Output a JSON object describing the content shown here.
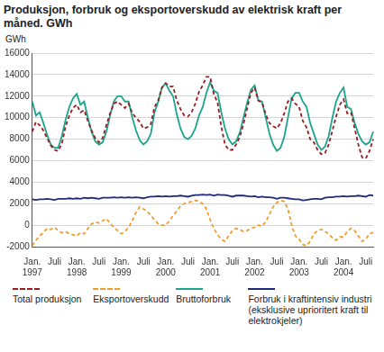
{
  "chart_data": {
    "type": "line",
    "title": "Produksjon, forbruk og eksportoverskudd av elektrisk kraft per måned. GWh",
    "ylabel": "GWh",
    "categories": [
      "Jan. 1997",
      null,
      null,
      null,
      null,
      null,
      "Juli",
      null,
      null,
      null,
      null,
      null,
      "Jan. 1998",
      null,
      null,
      null,
      null,
      null,
      "Juli",
      null,
      null,
      null,
      null,
      null,
      "Jan. 1999",
      null,
      null,
      null,
      null,
      null,
      "Juli",
      null,
      null,
      null,
      null,
      null,
      "Jan. 2000",
      null,
      null,
      null,
      null,
      null,
      "Juli",
      null,
      null,
      null,
      null,
      null,
      "Jan. 2001",
      null,
      null,
      null,
      null,
      null,
      "Juli",
      null,
      null,
      null,
      null,
      null,
      "Jan. 2002",
      null,
      null,
      null,
      null,
      null,
      "Juli",
      null,
      null,
      null,
      null,
      null,
      "Jan. 2003",
      null,
      null,
      null,
      null,
      null,
      "Juli",
      null,
      null,
      null,
      null,
      null,
      "Jan. 2004",
      null,
      null,
      null,
      null,
      null,
      "Juli",
      null,
      null
    ],
    "series": [
      {
        "name": "Total produksjon",
        "color": "#9b1b1e",
        "line_style": "dashed",
        "values": [
          8700,
          9600,
          9300,
          8800,
          8100,
          7400,
          7000,
          6900,
          7600,
          9200,
          10200,
          10900,
          11200,
          10500,
          10700,
          9700,
          8800,
          8100,
          7700,
          8100,
          9300,
          10400,
          11300,
          11500,
          11200,
          10900,
          11300,
          10400,
          10000,
          9600,
          9000,
          9100,
          9400,
          11000,
          11600,
          12800,
          13200,
          12900,
          12900,
          11600,
          10800,
          10200,
          10100,
          10500,
          11300,
          12400,
          13000,
          13800,
          13800,
          12200,
          11400,
          9200,
          7500,
          7000,
          7000,
          7500,
          8200,
          9400,
          10900,
          12300,
          12800,
          11600,
          11400,
          10300,
          9500,
          9200,
          9000,
          9500,
          10400,
          11500,
          11800,
          11300,
          11000,
          9700,
          9100,
          8000,
          7700,
          7000,
          6600,
          6700,
          7500,
          8800,
          10100,
          11200,
          11700,
          10400,
          10500,
          9000,
          7500,
          6300,
          6200,
          6900,
          8000
        ]
      },
      {
        "name": "Eksportoverskudd",
        "color": "#f39c2b",
        "line_style": "dashed",
        "values": [
          -1900,
          -1400,
          -1000,
          -700,
          -300,
          -400,
          -200,
          -500,
          -700,
          -600,
          -800,
          -900,
          -1000,
          -700,
          -800,
          -300,
          100,
          300,
          200,
          400,
          600,
          200,
          -200,
          -500,
          -800,
          -600,
          -200,
          400,
          1200,
          1700,
          1500,
          1300,
          900,
          500,
          100,
          0,
          0,
          400,
          900,
          1300,
          1800,
          2000,
          2100,
          2200,
          2300,
          2200,
          2000,
          1500,
          500,
          -300,
          -900,
          -1300,
          -1500,
          -1000,
          -500,
          -300,
          -400,
          -600,
          -500,
          -300,
          -200,
          0,
          -100,
          300,
          1000,
          1700,
          2100,
          2300,
          2200,
          1500,
          0,
          -1000,
          -1300,
          -1800,
          -1900,
          -1500,
          -800,
          -500,
          -400,
          -600,
          -800,
          -1200,
          -1400,
          -1100,
          -1100,
          -600,
          -300,
          -500,
          -1000,
          -1500,
          -1300,
          -800,
          -700
        ]
      },
      {
        "name": "Bruttoforbruk",
        "color": "#1aa58c",
        "line_style": "solid",
        "values": [
          11500,
          10200,
          10500,
          9500,
          8400,
          7500,
          7200,
          7200,
          8300,
          9800,
          11000,
          11800,
          12200,
          11200,
          11500,
          10000,
          8700,
          7800,
          7500,
          7700,
          8700,
          10200,
          11500,
          12000,
          12000,
          11500,
          11500,
          10000,
          8800,
          7900,
          7500,
          7800,
          8500,
          10500,
          11500,
          12800,
          13200,
          12500,
          12000,
          10300,
          9000,
          8200,
          8000,
          8300,
          9000,
          10200,
          11000,
          12300,
          13300,
          12500,
          12300,
          10500,
          9000,
          8000,
          7500,
          7800,
          8600,
          10000,
          11400,
          12600,
          13000,
          11600,
          11500,
          10000,
          8500,
          7500,
          6900,
          7200,
          8200,
          10000,
          11800,
          12300,
          12300,
          11500,
          11000,
          9500,
          8500,
          7500,
          7000,
          7300,
          8300,
          10000,
          11500,
          12300,
          12800,
          11000,
          10800,
          9500,
          8500,
          7800,
          7500,
          7700,
          8700
        ]
      },
      {
        "name": "Forbruk i kraftintensiv industri (eksklusive uprioritert kraft til elektrokjeler)",
        "color": "#1f2a7a",
        "line_style": "solid",
        "values": [
          2400,
          2350,
          2400,
          2400,
          2450,
          2400,
          2350,
          2450,
          2450,
          2450,
          2500,
          2450,
          2500,
          2450,
          2550,
          2500,
          2550,
          2500,
          2450,
          2550,
          2550,
          2550,
          2600,
          2550,
          2600,
          2550,
          2600,
          2550,
          2600,
          2550,
          2500,
          2600,
          2650,
          2650,
          2700,
          2650,
          2700,
          2650,
          2700,
          2700,
          2750,
          2700,
          2650,
          2750,
          2800,
          2800,
          2850,
          2800,
          2850,
          2750,
          2850,
          2800,
          2800,
          2750,
          2650,
          2750,
          2750,
          2750,
          2700,
          2650,
          2700,
          2600,
          2650,
          2600,
          2600,
          2550,
          2450,
          2550,
          2550,
          2500,
          2450,
          2400,
          2400,
          2300,
          2350,
          2400,
          2450,
          2450,
          2400,
          2550,
          2600,
          2600,
          2650,
          2650,
          2700,
          2650,
          2700,
          2700,
          2750,
          2700,
          2650,
          2800,
          2750
        ]
      }
    ],
    "ylim": [
      -2000,
      16000
    ],
    "yticks": [
      -2000,
      0,
      2000,
      4000,
      6000,
      8000,
      10000,
      12000,
      14000,
      16000
    ],
    "grid": true,
    "legend": "bottom"
  }
}
